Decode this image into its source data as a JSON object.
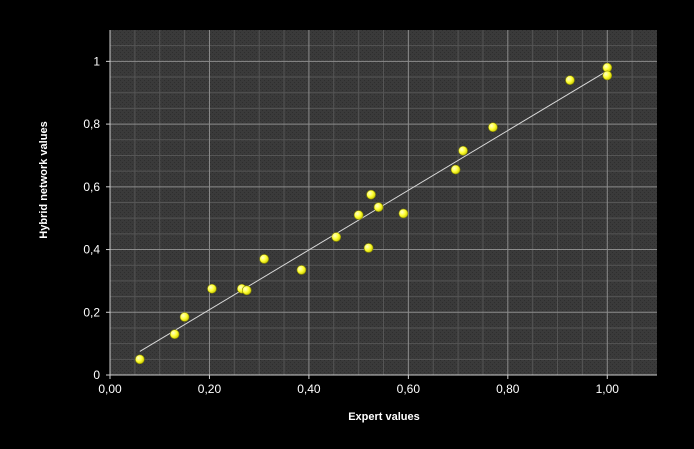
{
  "chart_data": {
    "type": "scatter",
    "title": "",
    "xlabel": "Expert values",
    "ylabel": "Hybrid network values",
    "xlim": [
      0,
      1.1
    ],
    "ylim": [
      0,
      1.1
    ],
    "grid": true,
    "x_ticks": [
      0,
      0.2,
      0.4,
      0.6,
      0.8,
      1.0
    ],
    "x_tick_labels": [
      "0,00",
      "0,20",
      "0,40",
      "0,60",
      "0,80",
      "1,00"
    ],
    "y_ticks": [
      0,
      0.2,
      0.4,
      0.6,
      0.8,
      1.0
    ],
    "y_tick_labels": [
      "0",
      "0,2",
      "0,4",
      "0,6",
      "0,8",
      "1"
    ],
    "trendline": {
      "x": [
        0.06,
        1.0
      ],
      "y": [
        0.075,
        0.97
      ]
    },
    "series": [
      {
        "x": [
          0.06,
          0.13,
          0.15,
          0.205,
          0.265,
          0.275,
          0.31,
          0.385,
          0.455,
          0.5,
          0.52,
          0.525,
          0.54,
          0.59,
          0.695,
          0.71,
          0.77,
          0.925,
          1.0,
          1.0
        ],
        "y": [
          0.05,
          0.13,
          0.185,
          0.275,
          0.275,
          0.27,
          0.37,
          0.335,
          0.44,
          0.51,
          0.405,
          0.575,
          0.535,
          0.515,
          0.655,
          0.715,
          0.79,
          0.94,
          0.98,
          0.955
        ]
      }
    ],
    "colors": {
      "background": "#000000",
      "plot_area": "#3a3a3a",
      "grid_major": "#8c8c8c",
      "grid_minor": "#555555",
      "trendline": "#d9d9d9",
      "marker": "#ffff33",
      "text": "#ffffff"
    }
  }
}
